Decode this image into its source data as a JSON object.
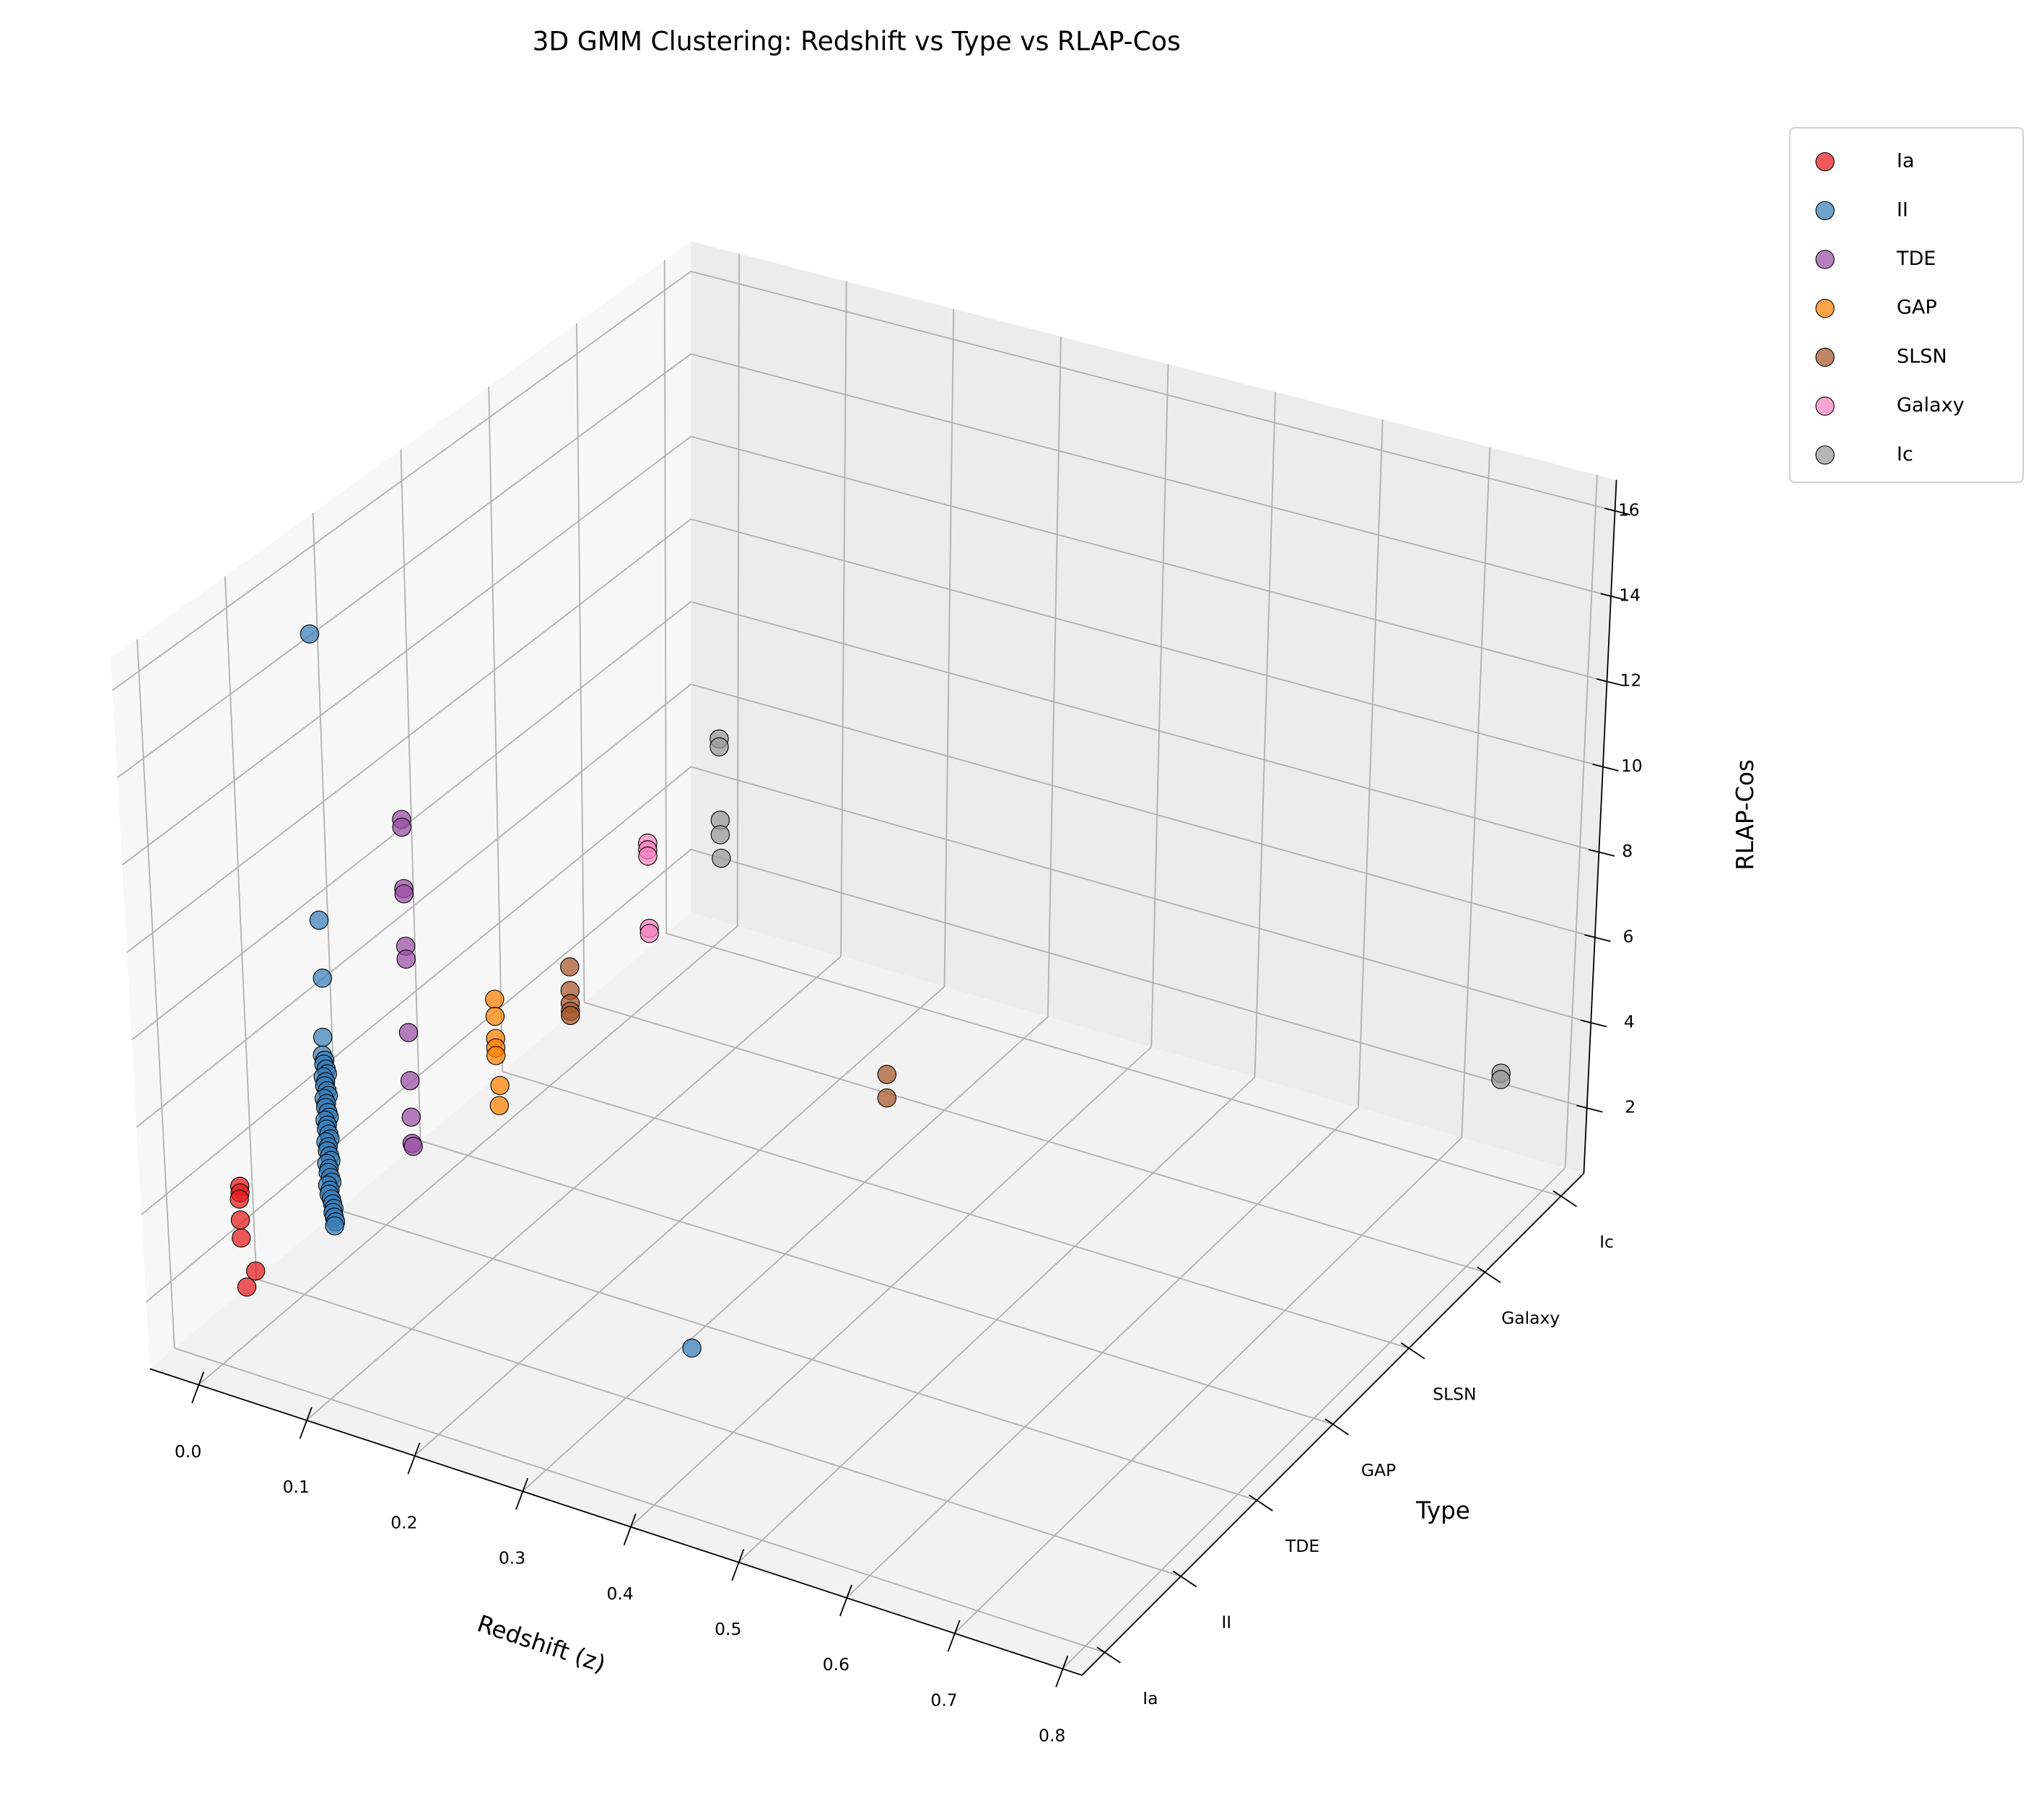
{
  "chart_data": {
    "type": "scatter3d",
    "title": "3D GMM Clustering: Redshift vs Type vs RLAP-Cos",
    "x_label": "Redshift (z)",
    "y_label": "Type",
    "z_label": "RLAP-Cos",
    "xlim": [
      -0.045,
      0.818
    ],
    "ylim": [
      -0.3,
      6.3
    ],
    "zlim": [
      0.47,
      16.73
    ],
    "xticks": [
      {
        "value": 0,
        "label": "0.0"
      },
      0.1,
      0.2,
      0.3,
      0.4,
      0.5,
      0.6,
      0.7,
      0.8
    ],
    "yticks": [
      {
        "value": 0,
        "label": "Ia"
      },
      {
        "value": 1,
        "label": "II"
      },
      {
        "value": 2,
        "label": "TDE"
      },
      {
        "value": 3,
        "label": "GAP"
      },
      {
        "value": 4,
        "label": "SLSN"
      },
      {
        "value": 5,
        "label": "Galaxy"
      },
      {
        "value": 6,
        "label": "Ic"
      }
    ],
    "zticks": [
      2,
      4,
      6,
      8,
      10,
      12,
      14,
      16
    ],
    "grid": true,
    "legend": "outside upper right",
    "series": [
      {
        "name": "Ia",
        "color": "#e41a1c",
        "x": [
          0.024,
          0.024,
          0.023,
          0.023,
          0.023,
          0.035,
          0.026
        ],
        "y": [
          0,
          0,
          0,
          0,
          0,
          0,
          0
        ],
        "z": [
          4.73,
          4.58,
          4.43,
          3.95,
          3.54,
          2.88,
          2.44
        ]
      },
      {
        "name": "II",
        "color": "#377eb8",
        "x": [
          0.03,
          0.028,
          0.029,
          0.027,
          0.026,
          0.028,
          0.027,
          0.029,
          0.03,
          0.026,
          0.028,
          0.027,
          0.029,
          0.03,
          0.026,
          0.028,
          0.027,
          0.029,
          0.03,
          0.026,
          0.028,
          0.027,
          0.029,
          0.03,
          0.026,
          0.028,
          0.027,
          0.029,
          0.03,
          0.026,
          0.028,
          0.027,
          0.029,
          0.03,
          0.026,
          0.028,
          0.027,
          0.029,
          0.03,
          0.031,
          0.03,
          0.031,
          0.032,
          0.031,
          0.363
        ],
        "y": [
          1,
          1,
          1,
          1,
          1,
          1,
          1,
          1,
          1,
          1,
          1,
          1,
          1,
          1,
          1,
          1,
          1,
          1,
          1,
          1,
          1,
          1,
          1,
          1,
          1,
          1,
          1,
          1,
          1,
          1,
          1,
          1,
          1,
          1,
          1,
          1,
          1,
          1,
          1,
          1,
          1,
          1,
          1,
          1,
          1
        ],
        "z": [
          15.95,
          9.33,
          8.0,
          6.62,
          6.2,
          6.1,
          6.0,
          5.9,
          5.8,
          5.7,
          5.6,
          5.5,
          5.4,
          5.3,
          5.2,
          5.1,
          5.0,
          4.9,
          4.8,
          4.7,
          4.6,
          4.5,
          4.4,
          4.3,
          4.2,
          4.1,
          4.0,
          3.9,
          3.8,
          3.7,
          3.6,
          3.5,
          3.4,
          3.3,
          3.2,
          3.1,
          3.0,
          2.9,
          2.8,
          2.7,
          2.6,
          2.5,
          2.4,
          2.3,
          2.1
        ]
      },
      {
        "name": "TDE",
        "color": "#984ea3",
        "x": [
          0.027,
          0.027,
          0.027,
          0.027,
          0.027,
          0.027,
          0.027,
          0.027,
          0.027,
          0.027,
          0.028
        ],
        "y": [
          2,
          2,
          2,
          2,
          2,
          2,
          2,
          2,
          2,
          2,
          2
        ],
        "z": [
          10.12,
          9.94,
          8.51,
          8.39,
          7.17,
          6.87,
          5.16,
          4.04,
          3.19,
          2.58,
          2.52
        ]
      },
      {
        "name": "GAP",
        "color": "#ff7f00",
        "x": [
          0.029,
          0.029,
          0.029,
          0.029,
          0.029,
          0.032,
          0.031
        ],
        "y": [
          3,
          3,
          3,
          3,
          3,
          3,
          3
        ],
        "z": [
          4.36,
          3.96,
          3.44,
          3.22,
          3.04,
          2.36,
          1.88
        ]
      },
      {
        "name": "SLSN",
        "color": "#a65628",
        "x": [
          0.021,
          0.021,
          0.021,
          0.021,
          0.021,
          0.321,
          0.321
        ],
        "y": [
          4,
          4,
          4,
          4,
          4,
          4,
          4
        ],
        "z": [
          3.45,
          2.89,
          2.58,
          2.4,
          2.3,
          3.15,
          2.6
        ]
      },
      {
        "name": "Galaxy",
        "color": "#f781bf",
        "x": [
          0.017,
          0.017,
          0.017,
          0.018,
          0.018
        ],
        "y": [
          5,
          5,
          5,
          5,
          5
        ],
        "z": [
          4.74,
          4.58,
          4.43,
          2.71,
          2.59
        ]
      },
      {
        "name": "Ic",
        "color": "#999999",
        "x": [
          0.006,
          0.006,
          0.007,
          0.007,
          0.008,
          0.756,
          0.756
        ],
        "y": [
          6,
          6,
          6,
          6,
          6,
          6,
          6
        ],
        "z": [
          5.53,
          5.34,
          3.58,
          3.23,
          2.67,
          2.91,
          2.76
        ]
      }
    ]
  }
}
